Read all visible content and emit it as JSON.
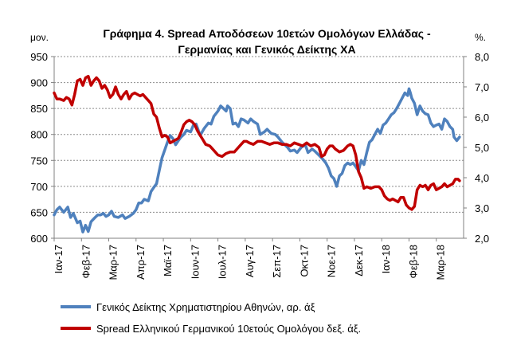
{
  "chart_data": {
    "type": "line",
    "title_line1": "Γράφημα 4. Spread Αποδόσεων 10ετών Ομολόγων Ελλάδας -",
    "title_line2": "Γερμανίας και Γενικός Δείκτης ΧΑ",
    "left_unit": "μον.",
    "right_unit": "%.",
    "left_ylim": [
      600,
      950
    ],
    "right_ylim": [
      2.0,
      8.0
    ],
    "left_ticks": [
      "600",
      "650",
      "700",
      "750",
      "800",
      "850",
      "900",
      "950"
    ],
    "right_ticks": [
      "2,0",
      "3,0",
      "4,0",
      "5,0",
      "6,0",
      "7,0",
      "8,0"
    ],
    "x_ticks": [
      "Ιαν-17",
      "Φεβ-17",
      "Μαρ-17",
      "Απρ-17",
      "Μαϊ-17",
      "Ιουν-17",
      "Ιουλ-17",
      "Αυγ-17",
      "Σεπ-17",
      "Οκτ-17",
      "Νοε-17",
      "Δεκ-17",
      "Ιαν-18",
      "Φεβ-18",
      "Μαρ-18"
    ],
    "grid": true,
    "legend_position": "bottom",
    "series": [
      {
        "name": "Γενικός Δείκτης Χρηματιστηρίου Αθηνών, αρ. άξ",
        "axis": "left",
        "color": "#4f81bd",
        "points": [
          [
            0.0,
            645
          ],
          [
            0.1,
            655
          ],
          [
            0.2,
            660
          ],
          [
            0.35,
            650
          ],
          [
            0.5,
            660
          ],
          [
            0.6,
            640
          ],
          [
            0.7,
            648
          ],
          [
            0.85,
            630
          ],
          [
            0.95,
            633
          ],
          [
            1.05,
            612
          ],
          [
            1.15,
            625
          ],
          [
            1.25,
            613
          ],
          [
            1.35,
            632
          ],
          [
            1.5,
            640
          ],
          [
            1.6,
            645
          ],
          [
            1.7,
            645
          ],
          [
            1.8,
            648
          ],
          [
            1.9,
            642
          ],
          [
            2.0,
            645
          ],
          [
            2.1,
            652
          ],
          [
            2.2,
            642
          ],
          [
            2.35,
            640
          ],
          [
            2.5,
            645
          ],
          [
            2.6,
            638
          ],
          [
            2.75,
            642
          ],
          [
            2.9,
            648
          ],
          [
            3.0,
            655
          ],
          [
            3.1,
            668
          ],
          [
            3.2,
            668
          ],
          [
            3.3,
            675
          ],
          [
            3.45,
            672
          ],
          [
            3.55,
            690
          ],
          [
            3.65,
            698
          ],
          [
            3.75,
            705
          ],
          [
            3.85,
            730
          ],
          [
            3.95,
            755
          ],
          [
            4.05,
            770
          ],
          [
            4.15,
            785
          ],
          [
            4.25,
            798
          ],
          [
            4.35,
            792
          ],
          [
            4.45,
            780
          ],
          [
            4.55,
            788
          ],
          [
            4.65,
            795
          ],
          [
            4.75,
            800
          ],
          [
            4.85,
            808
          ],
          [
            5.0,
            805
          ],
          [
            5.1,
            818
          ],
          [
            5.2,
            820
          ],
          [
            5.35,
            798
          ],
          [
            5.5,
            812
          ],
          [
            5.65,
            822
          ],
          [
            5.75,
            820
          ],
          [
            5.85,
            835
          ],
          [
            6.0,
            845
          ],
          [
            6.1,
            855
          ],
          [
            6.2,
            850
          ],
          [
            6.3,
            845
          ],
          [
            6.35,
            855
          ],
          [
            6.45,
            850
          ],
          [
            6.55,
            820
          ],
          [
            6.65,
            822
          ],
          [
            6.75,
            815
          ],
          [
            6.85,
            830
          ],
          [
            6.95,
            828
          ],
          [
            7.1,
            822
          ],
          [
            7.2,
            830
          ],
          [
            7.3,
            825
          ],
          [
            7.45,
            820
          ],
          [
            7.55,
            800
          ],
          [
            7.7,
            805
          ],
          [
            7.8,
            810
          ],
          [
            7.95,
            802
          ],
          [
            8.1,
            800
          ],
          [
            8.2,
            795
          ],
          [
            8.35,
            785
          ],
          [
            8.45,
            780
          ],
          [
            8.55,
            775
          ],
          [
            8.65,
            768
          ],
          [
            8.8,
            770
          ],
          [
            8.9,
            765
          ],
          [
            9.05,
            775
          ],
          [
            9.2,
            780
          ],
          [
            9.3,
            765
          ],
          [
            9.45,
            772
          ],
          [
            9.55,
            768
          ],
          [
            9.7,
            760
          ],
          [
            9.85,
            752
          ],
          [
            9.95,
            745
          ],
          [
            10.05,
            735
          ],
          [
            10.15,
            720
          ],
          [
            10.25,
            715
          ],
          [
            10.35,
            700
          ],
          [
            10.45,
            720
          ],
          [
            10.55,
            725
          ],
          [
            10.65,
            740
          ],
          [
            10.75,
            745
          ],
          [
            10.85,
            742
          ],
          [
            10.95,
            745
          ],
          [
            11.05,
            738
          ],
          [
            11.15,
            730
          ],
          [
            11.25,
            750
          ],
          [
            11.35,
            742
          ],
          [
            11.45,
            765
          ],
          [
            11.55,
            785
          ],
          [
            11.65,
            790
          ],
          [
            11.75,
            800
          ],
          [
            11.85,
            810
          ],
          [
            11.95,
            802
          ],
          [
            12.05,
            818
          ],
          [
            12.15,
            822
          ],
          [
            12.25,
            830
          ],
          [
            12.35,
            838
          ],
          [
            12.45,
            842
          ],
          [
            12.55,
            850
          ],
          [
            12.65,
            860
          ],
          [
            12.75,
            870
          ],
          [
            12.85,
            880
          ],
          [
            12.95,
            875
          ],
          [
            13.0,
            888
          ],
          [
            13.05,
            880
          ],
          [
            13.1,
            870
          ],
          [
            13.2,
            860
          ],
          [
            13.3,
            838
          ],
          [
            13.4,
            855
          ],
          [
            13.5,
            845
          ],
          [
            13.6,
            840
          ],
          [
            13.7,
            838
          ],
          [
            13.8,
            822
          ],
          [
            13.9,
            815
          ],
          [
            14.0,
            818
          ],
          [
            14.1,
            820
          ],
          [
            14.2,
            810
          ],
          [
            14.3,
            830
          ],
          [
            14.4,
            825
          ],
          [
            14.5,
            815
          ],
          [
            14.6,
            810
          ],
          [
            14.65,
            795
          ],
          [
            14.75,
            788
          ],
          [
            14.85,
            795
          ]
        ]
      },
      {
        "name": "Spread Ελληνικού Γερμανικού 10ετούς  Ομολόγου δεξ. άξ.",
        "axis": "right",
        "color": "#c00000",
        "points": [
          [
            0.0,
            6.8
          ],
          [
            0.1,
            6.6
          ],
          [
            0.2,
            6.6
          ],
          [
            0.35,
            6.55
          ],
          [
            0.45,
            6.65
          ],
          [
            0.55,
            6.6
          ],
          [
            0.65,
            6.4
          ],
          [
            0.75,
            6.75
          ],
          [
            0.85,
            7.2
          ],
          [
            0.95,
            7.25
          ],
          [
            1.05,
            7.05
          ],
          [
            1.15,
            7.3
          ],
          [
            1.25,
            7.35
          ],
          [
            1.35,
            7.05
          ],
          [
            1.45,
            7.2
          ],
          [
            1.55,
            7.3
          ],
          [
            1.65,
            7.2
          ],
          [
            1.75,
            6.95
          ],
          [
            1.85,
            7.05
          ],
          [
            1.95,
            6.9
          ],
          [
            2.05,
            6.65
          ],
          [
            2.15,
            6.75
          ],
          [
            2.25,
            7.0
          ],
          [
            2.35,
            6.75
          ],
          [
            2.45,
            6.6
          ],
          [
            2.55,
            6.75
          ],
          [
            2.65,
            6.85
          ],
          [
            2.75,
            6.6
          ],
          [
            2.85,
            6.75
          ],
          [
            2.95,
            6.8
          ],
          [
            3.05,
            6.75
          ],
          [
            3.15,
            6.7
          ],
          [
            3.25,
            6.75
          ],
          [
            3.35,
            6.65
          ],
          [
            3.45,
            6.55
          ],
          [
            3.55,
            6.45
          ],
          [
            3.65,
            6.1
          ],
          [
            3.75,
            6.0
          ],
          [
            3.85,
            5.65
          ],
          [
            3.95,
            5.35
          ],
          [
            4.05,
            5.4
          ],
          [
            4.15,
            5.35
          ],
          [
            4.25,
            5.15
          ],
          [
            4.35,
            5.2
          ],
          [
            4.45,
            5.25
          ],
          [
            4.55,
            5.3
          ],
          [
            4.65,
            5.5
          ],
          [
            4.75,
            5.75
          ],
          [
            4.85,
            5.85
          ],
          [
            4.95,
            5.9
          ],
          [
            5.05,
            5.85
          ],
          [
            5.15,
            5.75
          ],
          [
            5.25,
            5.55
          ],
          [
            5.35,
            5.4
          ],
          [
            5.45,
            5.25
          ],
          [
            5.55,
            5.1
          ],
          [
            5.7,
            5.05
          ],
          [
            5.85,
            4.9
          ],
          [
            6.0,
            4.75
          ],
          [
            6.15,
            4.7
          ],
          [
            6.3,
            4.8
          ],
          [
            6.45,
            4.85
          ],
          [
            6.6,
            4.85
          ],
          [
            6.75,
            5.0
          ],
          [
            6.85,
            5.1
          ],
          [
            6.95,
            5.2
          ],
          [
            7.05,
            5.2
          ],
          [
            7.15,
            5.15
          ],
          [
            7.3,
            5.1
          ],
          [
            7.45,
            5.2
          ],
          [
            7.6,
            5.2
          ],
          [
            7.75,
            5.15
          ],
          [
            7.9,
            5.1
          ],
          [
            8.05,
            5.15
          ],
          [
            8.2,
            5.15
          ],
          [
            8.35,
            5.1
          ],
          [
            8.5,
            5.1
          ],
          [
            8.65,
            5.05
          ],
          [
            8.8,
            5.15
          ],
          [
            8.95,
            5.1
          ],
          [
            9.1,
            5.05
          ],
          [
            9.25,
            5.15
          ],
          [
            9.4,
            5.05
          ],
          [
            9.55,
            5.1
          ],
          [
            9.7,
            5.0
          ],
          [
            9.8,
            4.7
          ],
          [
            9.9,
            4.75
          ],
          [
            10.0,
            4.95
          ],
          [
            10.1,
            5.05
          ],
          [
            10.2,
            5.05
          ],
          [
            10.3,
            4.95
          ],
          [
            10.45,
            4.85
          ],
          [
            10.6,
            4.9
          ],
          [
            10.75,
            5.05
          ],
          [
            10.85,
            5.1
          ],
          [
            10.95,
            5.05
          ],
          [
            11.05,
            4.75
          ],
          [
            11.15,
            4.2
          ],
          [
            11.25,
            4.0
          ],
          [
            11.35,
            3.65
          ],
          [
            11.45,
            3.7
          ],
          [
            11.6,
            3.65
          ],
          [
            11.75,
            3.7
          ],
          [
            11.9,
            3.7
          ],
          [
            12.0,
            3.6
          ],
          [
            12.1,
            3.4
          ],
          [
            12.2,
            3.3
          ],
          [
            12.3,
            3.25
          ],
          [
            12.4,
            3.3
          ],
          [
            12.5,
            3.25
          ],
          [
            12.6,
            3.2
          ],
          [
            12.7,
            3.35
          ],
          [
            12.8,
            3.35
          ],
          [
            12.9,
            3.1
          ],
          [
            13.0,
            3.0
          ],
          [
            13.1,
            2.95
          ],
          [
            13.2,
            3.05
          ],
          [
            13.3,
            3.6
          ],
          [
            13.4,
            3.75
          ],
          [
            13.5,
            3.7
          ],
          [
            13.6,
            3.75
          ],
          [
            13.7,
            3.6
          ],
          [
            13.8,
            3.75
          ],
          [
            13.9,
            3.8
          ],
          [
            14.0,
            3.6
          ],
          [
            14.1,
            3.65
          ],
          [
            14.2,
            3.7
          ],
          [
            14.3,
            3.8
          ],
          [
            14.4,
            3.7
          ],
          [
            14.5,
            3.75
          ],
          [
            14.6,
            3.8
          ],
          [
            14.7,
            3.95
          ],
          [
            14.8,
            3.95
          ],
          [
            14.85,
            3.9
          ]
        ]
      }
    ]
  }
}
